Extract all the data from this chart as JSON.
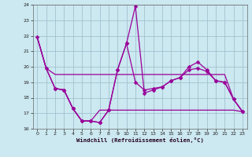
{
  "xlabel": "Windchill (Refroidissement éolien,°C)",
  "bg_color": "#cce8f0",
  "line_color": "#990099",
  "grid_color": "#99bbcc",
  "xlim": [
    -0.5,
    23.5
  ],
  "ylim": [
    16,
    24
  ],
  "yticks": [
    16,
    17,
    18,
    19,
    20,
    21,
    22,
    23,
    24
  ],
  "xticks": [
    0,
    1,
    2,
    3,
    4,
    5,
    6,
    7,
    8,
    9,
    10,
    11,
    12,
    13,
    14,
    15,
    16,
    17,
    18,
    19,
    20,
    21,
    22,
    23
  ],
  "series": [
    {
      "x": [
        0,
        1,
        2,
        3,
        4,
        5,
        6,
        7,
        8,
        9,
        10,
        11,
        12,
        13,
        14,
        15,
        16,
        17,
        18,
        19,
        20,
        21,
        22,
        23
      ],
      "y": [
        21.9,
        19.9,
        19.5,
        19.5,
        19.5,
        19.5,
        19.5,
        19.5,
        19.5,
        19.5,
        19.5,
        19.5,
        19.5,
        19.5,
        19.5,
        19.5,
        19.5,
        19.5,
        19.5,
        19.5,
        19.5,
        19.5,
        17.9,
        17.1
      ],
      "marker": false,
      "lw": 0.9
    },
    {
      "x": [
        0,
        1,
        2,
        3,
        4,
        5,
        6,
        7,
        8,
        9,
        10,
        11,
        12,
        13,
        14,
        15,
        16,
        17,
        18,
        19,
        20,
        21,
        22,
        23
      ],
      "y": [
        21.9,
        19.9,
        18.6,
        18.5,
        17.3,
        16.5,
        16.5,
        16.4,
        17.2,
        19.8,
        21.5,
        23.9,
        18.3,
        18.5,
        18.7,
        19.1,
        19.3,
        20.0,
        20.3,
        19.8,
        19.1,
        19.0,
        17.9,
        17.1
      ],
      "marker": true,
      "lw": 0.9
    },
    {
      "x": [
        0,
        1,
        2,
        3,
        4,
        5,
        6,
        7,
        8,
        9,
        10,
        11,
        12,
        13,
        14,
        15,
        16,
        17,
        18,
        19,
        20,
        21,
        22,
        23
      ],
      "y": [
        21.9,
        19.9,
        18.6,
        18.5,
        17.3,
        16.5,
        16.5,
        17.2,
        17.2,
        17.2,
        17.2,
        17.2,
        17.2,
        17.2,
        17.2,
        17.2,
        17.2,
        17.2,
        17.2,
        17.2,
        17.2,
        17.2,
        17.2,
        17.1
      ],
      "marker": false,
      "lw": 0.9
    },
    {
      "x": [
        2,
        3,
        4,
        5,
        6,
        7,
        8,
        9,
        10,
        11,
        12,
        13,
        14,
        15,
        16,
        17,
        18,
        19,
        20,
        21,
        22,
        23
      ],
      "y": [
        18.6,
        18.5,
        17.3,
        16.5,
        16.5,
        16.4,
        17.2,
        19.8,
        21.5,
        19.0,
        18.5,
        18.6,
        18.7,
        19.1,
        19.3,
        19.8,
        19.9,
        19.7,
        19.1,
        19.0,
        17.9,
        17.1
      ],
      "marker": true,
      "lw": 0.9
    }
  ]
}
